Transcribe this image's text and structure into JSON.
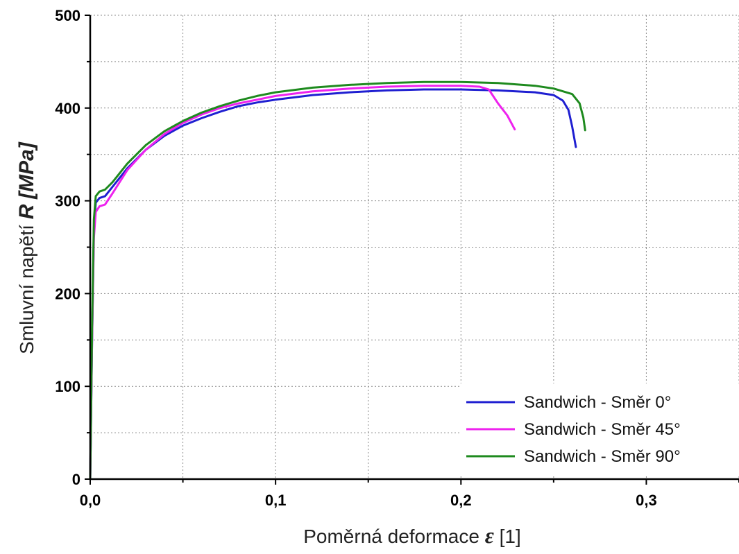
{
  "chart_data": {
    "type": "line",
    "xlabel_text": "Poměrná deformace",
    "xlabel_symbol": "ε",
    "xlabel_unit": "[1]",
    "ylabel_text": "Smluvní napětí",
    "ylabel_symbol": "R",
    "ylabel_unit": "[MPa]",
    "xlim": [
      0,
      0.35
    ],
    "ylim": [
      0,
      500
    ],
    "x_ticks": [
      0,
      0.1,
      0.2,
      0.3
    ],
    "x_tick_labels": [
      "0,0",
      "0,1",
      "0,2",
      "0,3"
    ],
    "y_ticks": [
      0,
      100,
      200,
      300,
      400,
      500
    ],
    "y_tick_labels": [
      "0",
      "100",
      "200",
      "300",
      "400",
      "500"
    ],
    "grid": true,
    "legend_position": "bottom-right",
    "series": [
      {
        "name": "Sandwich - Směr 0°",
        "color": "#1f1fd1",
        "points": [
          [
            0,
            0
          ],
          [
            0.001,
            150
          ],
          [
            0.002,
            270
          ],
          [
            0.003,
            298
          ],
          [
            0.005,
            303
          ],
          [
            0.008,
            305
          ],
          [
            0.012,
            315
          ],
          [
            0.02,
            335
          ],
          [
            0.03,
            355
          ],
          [
            0.04,
            370
          ],
          [
            0.05,
            381
          ],
          [
            0.06,
            389
          ],
          [
            0.07,
            396
          ],
          [
            0.08,
            402
          ],
          [
            0.09,
            406
          ],
          [
            0.1,
            409
          ],
          [
            0.12,
            414
          ],
          [
            0.14,
            417
          ],
          [
            0.16,
            419
          ],
          [
            0.18,
            420
          ],
          [
            0.2,
            420
          ],
          [
            0.22,
            419
          ],
          [
            0.24,
            417
          ],
          [
            0.25,
            414
          ],
          [
            0.255,
            408
          ],
          [
            0.258,
            398
          ],
          [
            0.26,
            380
          ],
          [
            0.262,
            358
          ]
        ]
      },
      {
        "name": "Sandwich - Směr 45°",
        "color": "#ee22ee",
        "points": [
          [
            0,
            0
          ],
          [
            0.001,
            150
          ],
          [
            0.002,
            260
          ],
          [
            0.003,
            288
          ],
          [
            0.005,
            294
          ],
          [
            0.008,
            296
          ],
          [
            0.012,
            308
          ],
          [
            0.02,
            333
          ],
          [
            0.03,
            355
          ],
          [
            0.04,
            372
          ],
          [
            0.05,
            384
          ],
          [
            0.06,
            393
          ],
          [
            0.07,
            400
          ],
          [
            0.08,
            405
          ],
          [
            0.09,
            409
          ],
          [
            0.1,
            413
          ],
          [
            0.12,
            418
          ],
          [
            0.14,
            421
          ],
          [
            0.16,
            423
          ],
          [
            0.18,
            424
          ],
          [
            0.2,
            424
          ],
          [
            0.21,
            423
          ],
          [
            0.215,
            420
          ],
          [
            0.22,
            405
          ],
          [
            0.225,
            392
          ],
          [
            0.229,
            377
          ]
        ]
      },
      {
        "name": "Sandwich - Směr 90°",
        "color": "#1e8a1e",
        "points": [
          [
            0,
            0
          ],
          [
            0.001,
            160
          ],
          [
            0.002,
            280
          ],
          [
            0.003,
            305
          ],
          [
            0.005,
            310
          ],
          [
            0.008,
            312
          ],
          [
            0.012,
            320
          ],
          [
            0.02,
            340
          ],
          [
            0.03,
            360
          ],
          [
            0.04,
            375
          ],
          [
            0.05,
            386
          ],
          [
            0.06,
            395
          ],
          [
            0.07,
            402
          ],
          [
            0.08,
            408
          ],
          [
            0.09,
            413
          ],
          [
            0.1,
            417
          ],
          [
            0.12,
            422
          ],
          [
            0.14,
            425
          ],
          [
            0.16,
            427
          ],
          [
            0.18,
            428
          ],
          [
            0.2,
            428
          ],
          [
            0.22,
            427
          ],
          [
            0.24,
            424
          ],
          [
            0.25,
            421
          ],
          [
            0.26,
            415
          ],
          [
            0.264,
            405
          ],
          [
            0.266,
            390
          ],
          [
            0.267,
            376
          ]
        ]
      }
    ]
  }
}
